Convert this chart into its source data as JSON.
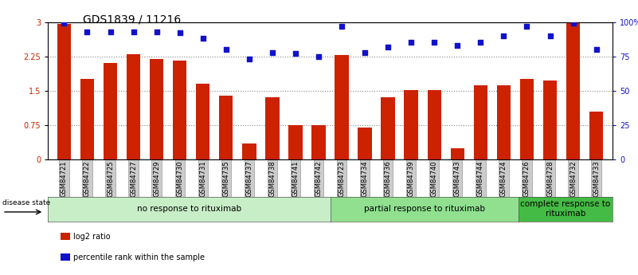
{
  "title": "GDS1839 / 11216",
  "categories": [
    "GSM84721",
    "GSM84722",
    "GSM84725",
    "GSM84727",
    "GSM84729",
    "GSM84730",
    "GSM84731",
    "GSM84735",
    "GSM84737",
    "GSM84738",
    "GSM84741",
    "GSM84742",
    "GSM84723",
    "GSM84734",
    "GSM84736",
    "GSM84739",
    "GSM84740",
    "GSM84743",
    "GSM84744",
    "GSM84724",
    "GSM84726",
    "GSM84728",
    "GSM84732",
    "GSM84733"
  ],
  "log2_ratio": [
    2.95,
    1.75,
    2.1,
    2.3,
    2.2,
    2.15,
    1.65,
    1.4,
    0.35,
    1.35,
    0.75,
    0.75,
    2.28,
    0.7,
    1.35,
    1.52,
    1.52,
    0.25,
    1.62,
    1.62,
    1.75,
    1.72,
    3.0,
    1.05
  ],
  "percentile": [
    99,
    93,
    93,
    93,
    93,
    92,
    88,
    80,
    73,
    78,
    77,
    75,
    97,
    78,
    82,
    85,
    85,
    83,
    85,
    90,
    97,
    90,
    99,
    80
  ],
  "bar_color": "#cc2200",
  "dot_color": "#1111cc",
  "ylim_left": [
    0,
    3
  ],
  "ylim_right": [
    0,
    100
  ],
  "yticks_left": [
    0,
    0.75,
    1.5,
    2.25,
    3
  ],
  "yticks_right": [
    0,
    25,
    50,
    75,
    100
  ],
  "ytick_labels_left": [
    "0",
    "0.75",
    "1.5",
    "2.25",
    "3"
  ],
  "ytick_labels_right": [
    "0",
    "25",
    "50",
    "75",
    "100%"
  ],
  "groups": [
    {
      "label": "no response to rituximab",
      "count": 12,
      "color": "#c8eec8"
    },
    {
      "label": "partial response to rituximab",
      "count": 8,
      "color": "#90e090"
    },
    {
      "label": "complete response to\nrituximab",
      "count": 4,
      "color": "#44bb44"
    }
  ],
  "disease_state_label": "disease state",
  "legend": [
    {
      "label": "log2 ratio",
      "color": "#cc2200"
    },
    {
      "label": "percentile rank within the sample",
      "color": "#1111cc"
    }
  ],
  "background_color": "#ffffff",
  "tick_label_color_left": "#cc2200",
  "tick_label_color_right": "#1111cc",
  "bar_width": 0.6,
  "dotted_line_color": "#888888",
  "title_fontsize": 10,
  "axis_fontsize": 7,
  "xtick_fontsize": 6,
  "group_fontsize": 7.5
}
